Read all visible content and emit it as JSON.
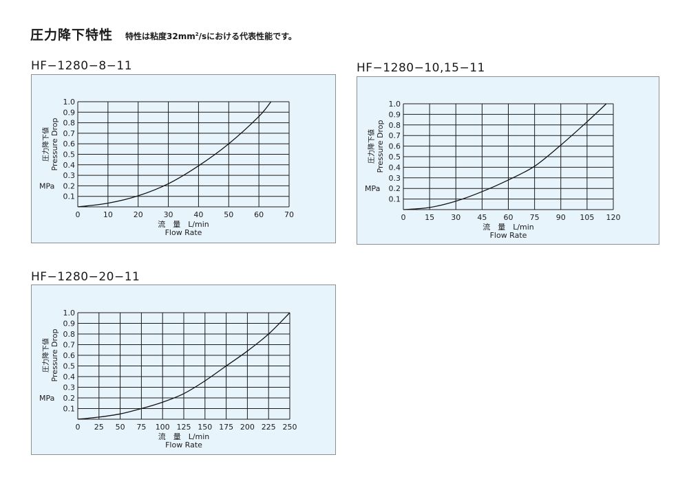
{
  "heading": {
    "title": "圧力降下特性",
    "note_prefix": "特性は粘度32mm",
    "note_sup": "2",
    "note_suffix": "/sにおける代表性能です。"
  },
  "chart_data": [
    {
      "type": "line",
      "title": "HF−1280−8−11",
      "xlabel_jp": "流　量　L/min",
      "xlabel_en": "Flow Rate",
      "ylabel_jp": "圧力降下値",
      "ylabel_en": "Pressure Drop",
      "yunit": "MPa",
      "xlim": [
        0,
        70
      ],
      "ylim": [
        0,
        1.0
      ],
      "xticks": [
        "0",
        "10",
        "20",
        "30",
        "40",
        "50",
        "60",
        "70"
      ],
      "yticks": [
        "0.1",
        "0.2",
        "0.3",
        "0.4",
        "0.5",
        "0.6",
        "0.7",
        "0.8",
        "0.9",
        "1.0"
      ],
      "grid": true,
      "series": [
        {
          "x": [
            0,
            10,
            20,
            30,
            40,
            50,
            60,
            64
          ],
          "y": [
            0,
            0.035,
            0.105,
            0.22,
            0.39,
            0.6,
            0.86,
            1.0
          ]
        }
      ]
    },
    {
      "type": "line",
      "title": "HF−1280−10,15−11",
      "xlabel_jp": "流　量　L/min",
      "xlabel_en": "Flow Rate",
      "ylabel_jp": "圧力降下値",
      "ylabel_en": "Pressure Drop",
      "yunit": "MPa",
      "xlim": [
        0,
        120
      ],
      "ylim": [
        0,
        1.0
      ],
      "xticks": [
        "0",
        "15",
        "30",
        "45",
        "60",
        "75",
        "90",
        "105",
        "120"
      ],
      "yticks": [
        "0.1",
        "0.2",
        "0.3",
        "0.4",
        "0.5",
        "0.6",
        "0.7",
        "0.8",
        "0.9",
        "1.0"
      ],
      "grid": true,
      "series": [
        {
          "x": [
            0,
            15,
            30,
            45,
            60,
            75,
            90,
            105,
            116
          ],
          "y": [
            0,
            0.02,
            0.08,
            0.17,
            0.28,
            0.41,
            0.61,
            0.83,
            1.0
          ]
        }
      ]
    },
    {
      "type": "line",
      "title": "HF−1280−20−11",
      "xlabel_jp": "流　量　L/min",
      "xlabel_en": "Flow Rate",
      "ylabel_jp": "圧力降下値",
      "ylabel_en": "Pressure Drop",
      "yunit": "MPa",
      "xlim": [
        0,
        250
      ],
      "ylim": [
        0,
        1.0
      ],
      "xticks": [
        "0",
        "25",
        "50",
        "75",
        "100",
        "125",
        "150",
        "175",
        "200",
        "225",
        "250"
      ],
      "yticks": [
        "0.1",
        "0.2",
        "0.3",
        "0.4",
        "0.5",
        "0.6",
        "0.7",
        "0.8",
        "0.9",
        "1.0"
      ],
      "grid": true,
      "series": [
        {
          "x": [
            0,
            25,
            50,
            75,
            100,
            125,
            150,
            175,
            200,
            225,
            250
          ],
          "y": [
            0,
            0.02,
            0.05,
            0.1,
            0.16,
            0.24,
            0.36,
            0.5,
            0.64,
            0.8,
            1.0
          ]
        }
      ]
    }
  ]
}
